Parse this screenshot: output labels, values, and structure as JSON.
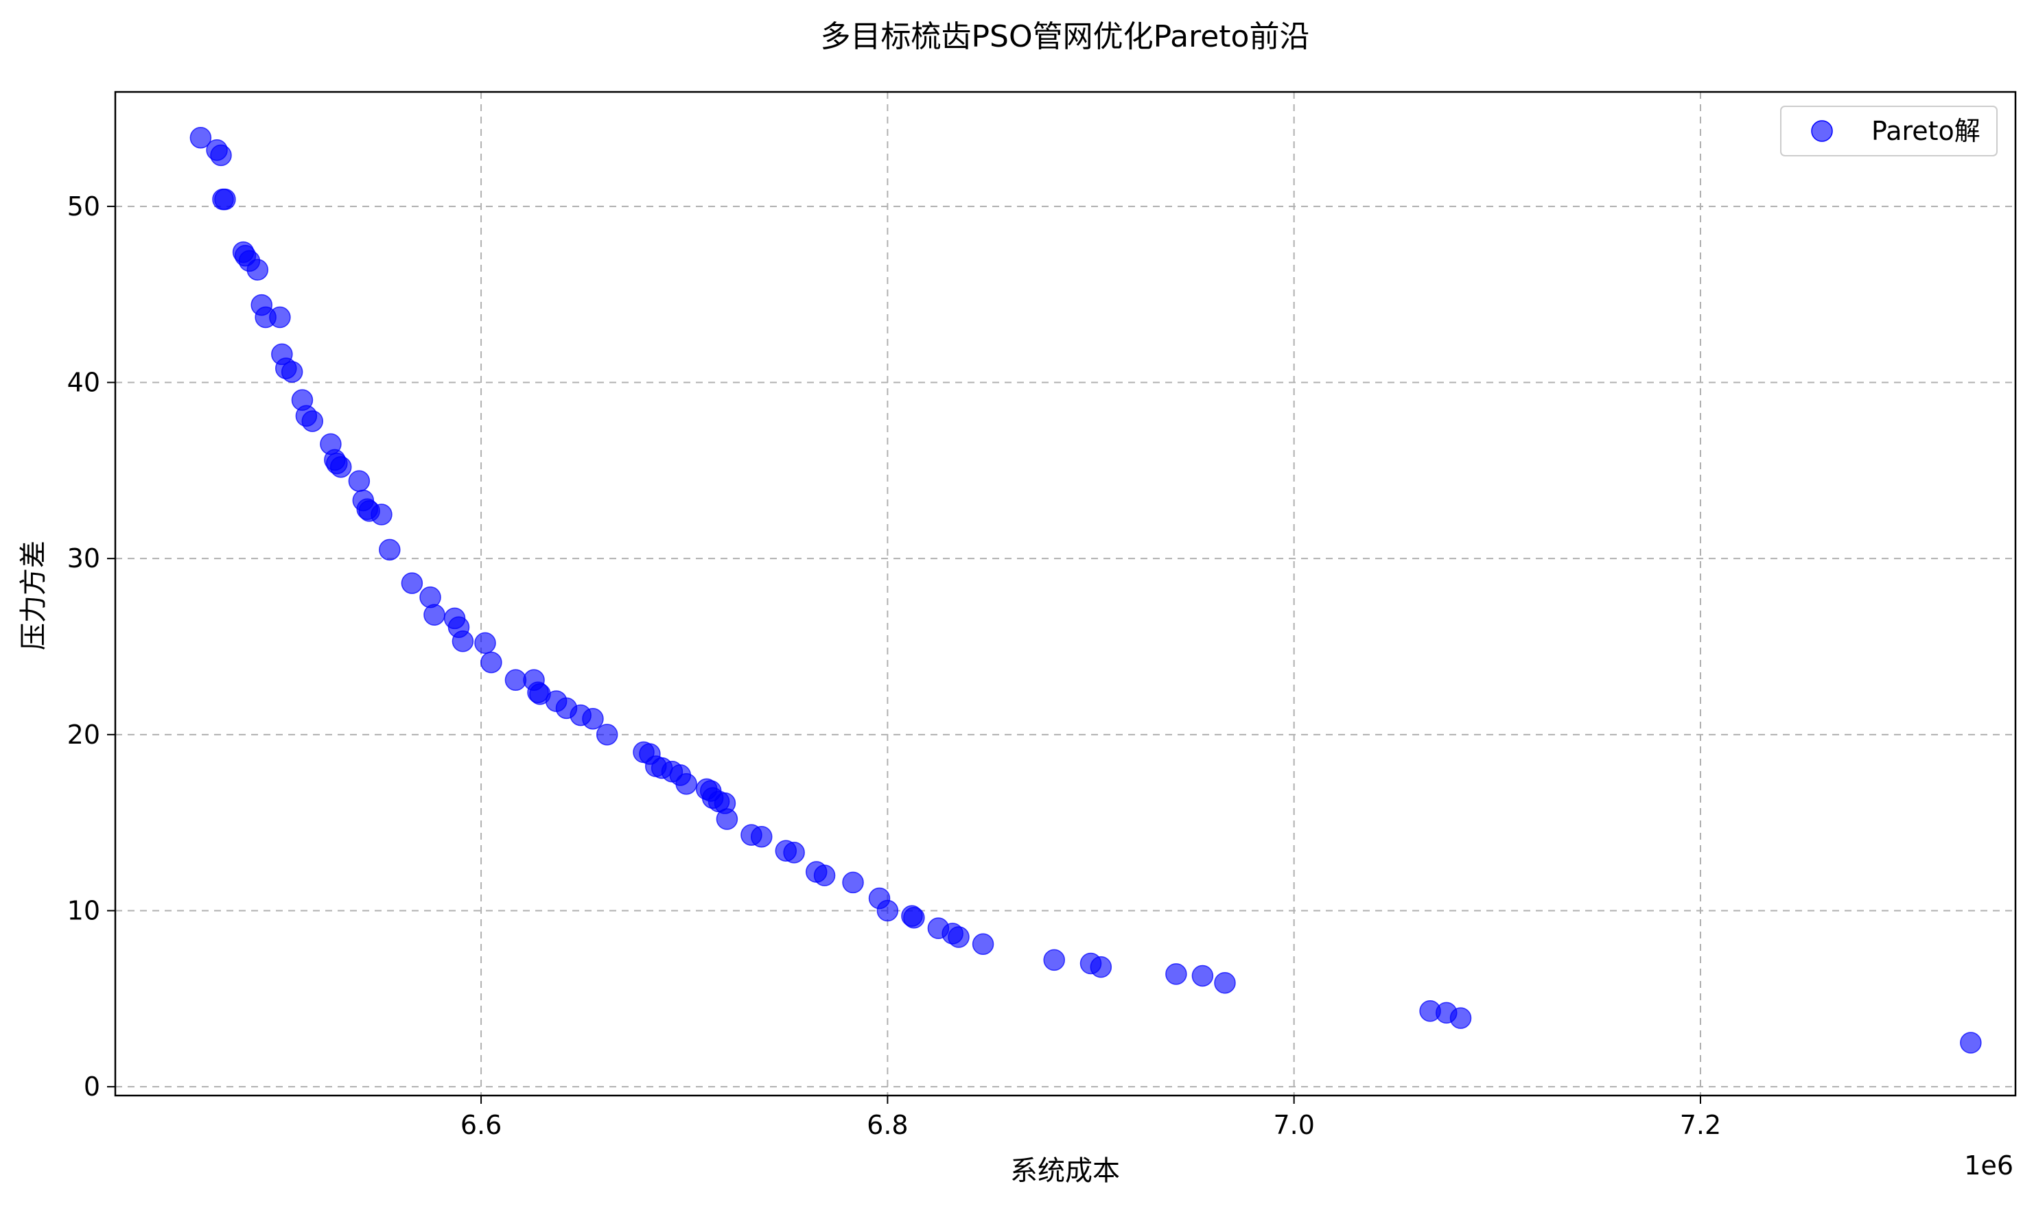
{
  "chart_data": {
    "type": "scatter",
    "title": "多目标梳齿PSO管网优化Pareto前沿",
    "xlabel": "系统成本",
    "ylabel": "压力方差",
    "x_offset_label": "1e6",
    "xlim": [
      6.42,
      7.355
    ],
    "ylim": [
      -0.5,
      56.5
    ],
    "xticks": [
      6.6,
      6.8,
      7.0,
      7.2
    ],
    "xtick_labels": [
      "6.6",
      "6.8",
      "7.0",
      "7.2"
    ],
    "yticks": [
      0,
      10,
      20,
      30,
      40,
      50
    ],
    "ytick_labels": [
      "0",
      "10",
      "20",
      "30",
      "40",
      "50"
    ],
    "grid": true,
    "legend_position": "top-right",
    "marker_color": "#0000ff",
    "marker_alpha": 0.6,
    "series": [
      {
        "name": "Pareto解",
        "points": [
          [
            6.462,
            53.9
          ],
          [
            6.47,
            53.2
          ],
          [
            6.472,
            52.9
          ],
          [
            6.473,
            50.4
          ],
          [
            6.474,
            50.4
          ],
          [
            6.483,
            47.4
          ],
          [
            6.484,
            47.2
          ],
          [
            6.486,
            46.9
          ],
          [
            6.49,
            46.4
          ],
          [
            6.492,
            44.4
          ],
          [
            6.494,
            43.7
          ],
          [
            6.501,
            43.7
          ],
          [
            6.502,
            41.6
          ],
          [
            6.504,
            40.8
          ],
          [
            6.507,
            40.6
          ],
          [
            6.512,
            39.0
          ],
          [
            6.514,
            38.1
          ],
          [
            6.517,
            37.8
          ],
          [
            6.526,
            36.5
          ],
          [
            6.528,
            35.6
          ],
          [
            6.529,
            35.4
          ],
          [
            6.531,
            35.2
          ],
          [
            6.54,
            34.4
          ],
          [
            6.542,
            33.3
          ],
          [
            6.544,
            32.8
          ],
          [
            6.545,
            32.7
          ],
          [
            6.551,
            32.5
          ],
          [
            6.555,
            30.5
          ],
          [
            6.566,
            28.6
          ],
          [
            6.575,
            27.8
          ],
          [
            6.577,
            26.8
          ],
          [
            6.587,
            26.6
          ],
          [
            6.589,
            26.1
          ],
          [
            6.591,
            25.3
          ],
          [
            6.602,
            25.2
          ],
          [
            6.605,
            24.1
          ],
          [
            6.617,
            23.1
          ],
          [
            6.626,
            23.1
          ],
          [
            6.628,
            22.4
          ],
          [
            6.629,
            22.3
          ],
          [
            6.637,
            21.9
          ],
          [
            6.642,
            21.5
          ],
          [
            6.649,
            21.1
          ],
          [
            6.655,
            20.9
          ],
          [
            6.662,
            20.0
          ],
          [
            6.68,
            19.0
          ],
          [
            6.683,
            18.9
          ],
          [
            6.686,
            18.2
          ],
          [
            6.689,
            18.1
          ],
          [
            6.694,
            17.9
          ],
          [
            6.698,
            17.7
          ],
          [
            6.701,
            17.2
          ],
          [
            6.711,
            16.9
          ],
          [
            6.713,
            16.8
          ],
          [
            6.714,
            16.4
          ],
          [
            6.717,
            16.2
          ],
          [
            6.72,
            16.1
          ],
          [
            6.721,
            15.2
          ],
          [
            6.733,
            14.3
          ],
          [
            6.738,
            14.2
          ],
          [
            6.75,
            13.4
          ],
          [
            6.754,
            13.3
          ],
          [
            6.765,
            12.2
          ],
          [
            6.769,
            12.0
          ],
          [
            6.783,
            11.6
          ],
          [
            6.796,
            10.7
          ],
          [
            6.8,
            10.0
          ],
          [
            6.812,
            9.7
          ],
          [
            6.813,
            9.6
          ],
          [
            6.825,
            9.0
          ],
          [
            6.832,
            8.7
          ],
          [
            6.835,
            8.5
          ],
          [
            6.847,
            8.1
          ],
          [
            6.882,
            7.2
          ],
          [
            6.9,
            7.0
          ],
          [
            6.905,
            6.8
          ],
          [
            6.942,
            6.4
          ],
          [
            6.955,
            6.3
          ],
          [
            6.966,
            5.9
          ],
          [
            7.067,
            4.3
          ],
          [
            7.075,
            4.2
          ],
          [
            7.082,
            3.9
          ],
          [
            7.333,
            2.5
          ]
        ]
      }
    ]
  }
}
